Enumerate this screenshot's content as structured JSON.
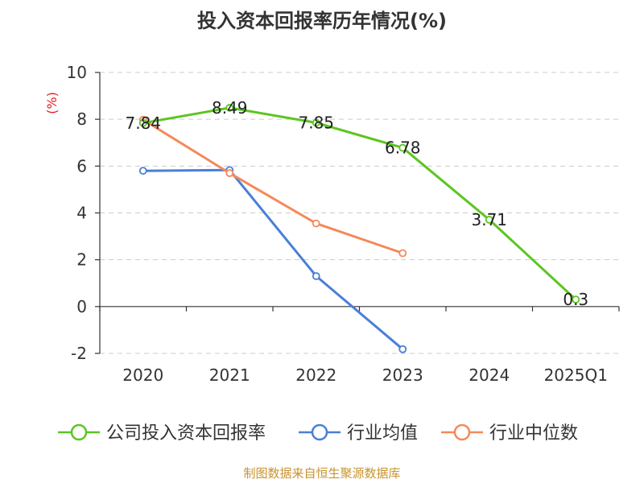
{
  "chart_data": {
    "type": "line",
    "title": "投入资本回报率历年情况(%)",
    "ylabel": "(%)",
    "xlabel": "",
    "categories": [
      "2020",
      "2021",
      "2022",
      "2023",
      "2024",
      "2025Q1"
    ],
    "ylim": [
      -2,
      10
    ],
    "yticks": [
      -2,
      0,
      2,
      4,
      6,
      8,
      10
    ],
    "grid": true,
    "legend_position": "bottom",
    "series": [
      {
        "name": "公司投入资本回报率",
        "color": "#5cc520",
        "values": [
          7.84,
          8.49,
          7.85,
          6.78,
          3.71,
          0.3
        ],
        "labels": [
          "7.84",
          "8.49",
          "7.85",
          "6.78",
          "3.71",
          "0.3"
        ]
      },
      {
        "name": "行业均值",
        "color": "#4a7fd6",
        "values": [
          5.8,
          5.83,
          1.3,
          -1.82,
          null,
          null
        ]
      },
      {
        "name": "行业中位数",
        "color": "#f5895a",
        "values": [
          7.98,
          5.7,
          3.55,
          2.28,
          null,
          null
        ]
      }
    ]
  },
  "source": "制图数据来自恒生聚源数据库"
}
